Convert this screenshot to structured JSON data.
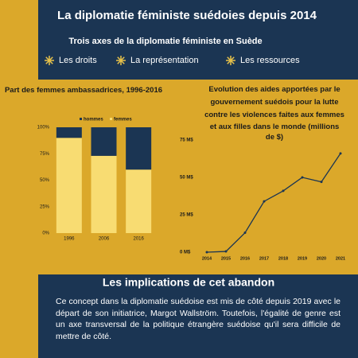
{
  "header": {
    "title": "La diplomatie féministe suédoies depuis 2014",
    "subtitle": "Trois axes de la diplomatie féministe en Suède",
    "axes": [
      "Les droits",
      "La représentation",
      "Les ressources"
    ]
  },
  "chart_data": [
    {
      "type": "stacked-bar",
      "title": "Part des femmes ambassadrices, 1996-2016",
      "categories": [
        "1996",
        "2006",
        "2016"
      ],
      "series": [
        {
          "name": "femmes",
          "color": "#f8dc72",
          "values": [
            90,
            73,
            60
          ]
        },
        {
          "name": "hommes",
          "color": "#1b3553",
          "values": [
            10,
            27,
            40
          ]
        }
      ],
      "ylim": [
        0,
        100
      ],
      "yticks": [
        {
          "value": 0,
          "label": "0%"
        },
        {
          "value": 25,
          "label": "25%"
        },
        {
          "value": 50,
          "label": "50%"
        },
        {
          "value": 75,
          "label": "75%"
        },
        {
          "value": 100,
          "label": "100%"
        }
      ]
    },
    {
      "type": "line",
      "title": "Evolution des aides apportées par le gouvernement suédois pour la lutte contre les violences faites aux femmes et aux filles dans le monde (millions de $)",
      "categories": [
        "2014",
        "2015",
        "2016",
        "2017",
        "2018",
        "2019",
        "2020",
        "2021"
      ],
      "values": [
        0,
        0.5,
        13,
        34,
        41,
        50,
        47,
        66
      ],
      "color": "#1b3553",
      "ylim": [
        0,
        75
      ],
      "yticks": [
        {
          "value": 0,
          "label": "0 M$"
        },
        {
          "value": 25,
          "label": "25 M$"
        },
        {
          "value": 50,
          "label": "50 M$"
        },
        {
          "value": 75,
          "label": "75 M$"
        }
      ]
    }
  ],
  "section": {
    "title": "Les implications de cet abandon",
    "text": "Ce concept dans la diplomatie suédoise est mis de côté depuis 2019 avec le départ de son initiatrice, Margot Wallström. Toutefois, l'égalité de genre est un axe transversal de la politique étrangère suédoise qu'il sera difficile de mettre de côté."
  }
}
